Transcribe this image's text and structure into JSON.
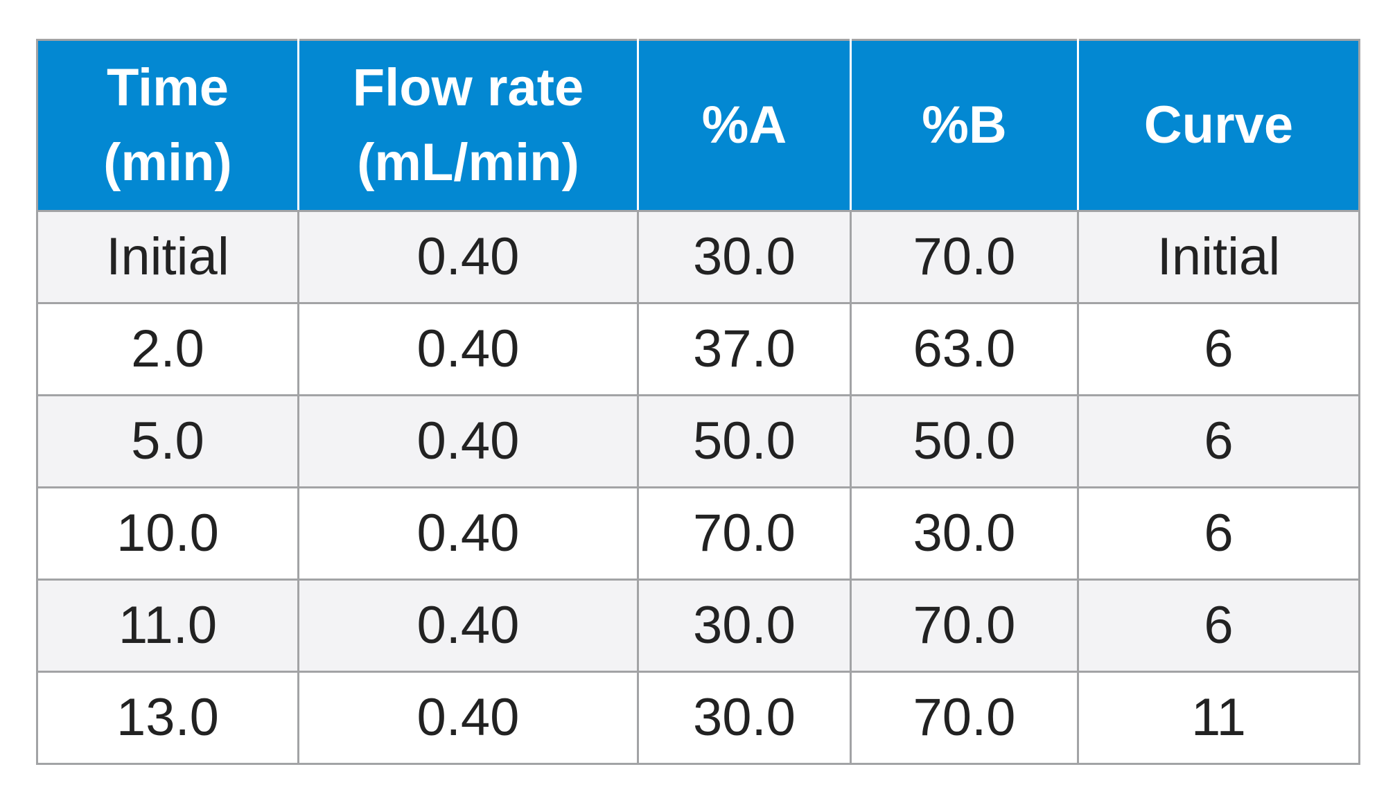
{
  "table": {
    "headers": [
      {
        "lines": [
          "Time",
          "(min)"
        ]
      },
      {
        "lines": [
          "Flow rate",
          "(mL/min)"
        ]
      },
      {
        "lines": [
          "%A"
        ]
      },
      {
        "lines": [
          "%B"
        ]
      },
      {
        "lines": [
          "Curve"
        ]
      }
    ],
    "rows": [
      [
        "Initial",
        "0.40",
        "30.0",
        "70.0",
        "Initial"
      ],
      [
        "2.0",
        "0.40",
        "37.0",
        "63.0",
        "6"
      ],
      [
        "5.0",
        "0.40",
        "50.0",
        "50.0",
        "6"
      ],
      [
        "10.0",
        "0.40",
        "70.0",
        "30.0",
        "6"
      ],
      [
        "11.0",
        "0.40",
        "30.0",
        "70.0",
        "6"
      ],
      [
        "13.0",
        "0.40",
        "30.0",
        "70.0",
        "11"
      ]
    ],
    "colors": {
      "header_bg": "#0388d2",
      "header_text": "#ffffff",
      "row_alt_bg": "#f3f3f5",
      "row_bg": "#ffffff",
      "grid": "#a2a3a5",
      "cell_text": "#222222"
    }
  }
}
